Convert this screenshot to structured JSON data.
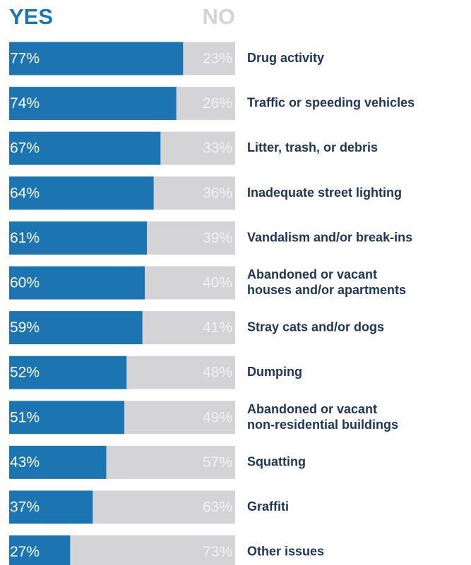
{
  "chart_data": {
    "type": "stacked-bar-horizontal",
    "categories": [
      "Drug activity",
      "Traffic or speeding vehicles",
      "Litter, trash, or debris",
      "Inadequate street lighting",
      "Vandalism and/or break-ins",
      "Abandoned or vacant\nhouses and/or apartments",
      "Stray cats and/or dogs",
      "Dumping",
      "Abandoned or vacant\nnon-residential buildings",
      "Squatting",
      "Graffiti",
      "Other issues"
    ],
    "xlim": [
      0,
      100
    ],
    "series": [
      {
        "name": "YES",
        "color": "#1b75b1",
        "label_color": "#ffffff",
        "values": [
          77,
          74,
          67,
          64,
          61,
          60,
          59,
          52,
          51,
          43,
          37,
          27
        ],
        "value_labels": [
          "77%",
          "74%",
          "67%",
          "64%",
          "61%",
          "60%",
          "59%",
          "52%",
          "51%",
          "43%",
          "37%",
          "27%"
        ]
      },
      {
        "name": "NO",
        "color": "#d4d4d6",
        "label_color": "#f1f1f2",
        "values": [
          23,
          26,
          33,
          36,
          39,
          40,
          41,
          48,
          49,
          57,
          63,
          73
        ],
        "value_labels": [
          "23%",
          "26%",
          "33%",
          "36%",
          "39%",
          "40%",
          "41%",
          "48%",
          "49%",
          "57%",
          "63%",
          "73%"
        ]
      }
    ]
  }
}
